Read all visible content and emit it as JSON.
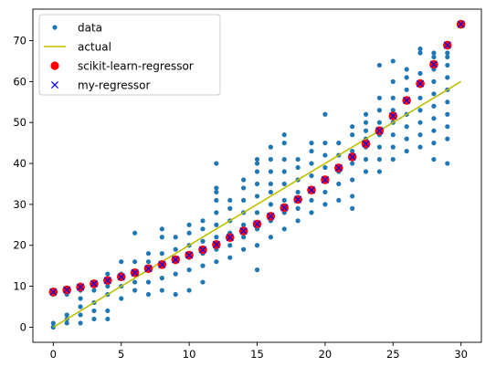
{
  "chart_data": {
    "type": "scatter",
    "title": "",
    "xlabel": "",
    "ylabel": "",
    "xlim": [
      -1.5,
      31.5
    ],
    "ylim": [
      -3.7,
      77.7
    ],
    "grid": false,
    "legend_position": "top-left",
    "x_ticks": [
      0,
      5,
      10,
      15,
      20,
      25,
      30
    ],
    "y_ticks": [
      0,
      10,
      20,
      30,
      40,
      50,
      60,
      70
    ],
    "series": [
      {
        "name": "data",
        "kind": "scatter",
        "color": "#1f77b4",
        "points": [
          [
            0,
            0
          ],
          [
            0,
            0
          ],
          [
            0,
            1
          ],
          [
            0,
            8
          ],
          [
            0,
            9
          ],
          [
            1,
            1
          ],
          [
            1,
            2
          ],
          [
            1,
            3
          ],
          [
            1,
            8
          ],
          [
            1,
            9
          ],
          [
            2,
            1
          ],
          [
            2,
            3
          ],
          [
            2,
            5
          ],
          [
            2,
            7
          ],
          [
            2,
            9
          ],
          [
            3,
            2
          ],
          [
            3,
            4
          ],
          [
            3,
            6
          ],
          [
            3,
            9
          ],
          [
            3,
            11
          ],
          [
            4,
            2
          ],
          [
            4,
            4
          ],
          [
            4,
            8
          ],
          [
            4,
            10
          ],
          [
            4,
            13
          ],
          [
            5,
            7
          ],
          [
            5,
            10
          ],
          [
            5,
            12
          ],
          [
            5,
            13
          ],
          [
            5,
            16
          ],
          [
            6,
            9
          ],
          [
            6,
            11
          ],
          [
            6,
            13
          ],
          [
            6,
            16
          ],
          [
            6,
            23
          ],
          [
            7,
            8
          ],
          [
            7,
            11
          ],
          [
            7,
            14
          ],
          [
            7,
            16
          ],
          [
            7,
            18
          ],
          [
            8,
            9
          ],
          [
            8,
            12
          ],
          [
            8,
            15
          ],
          [
            8,
            18
          ],
          [
            8,
            22
          ],
          [
            8,
            24
          ],
          [
            9,
            8
          ],
          [
            9,
            13
          ],
          [
            9,
            16
          ],
          [
            9,
            19
          ],
          [
            9,
            22
          ],
          [
            10,
            9
          ],
          [
            10,
            14
          ],
          [
            10,
            17
          ],
          [
            10,
            20
          ],
          [
            10,
            23
          ],
          [
            10,
            25
          ],
          [
            11,
            11
          ],
          [
            11,
            15
          ],
          [
            11,
            18
          ],
          [
            11,
            21
          ],
          [
            11,
            24
          ],
          [
            11,
            26
          ],
          [
            12,
            16
          ],
          [
            12,
            19
          ],
          [
            12,
            22
          ],
          [
            12,
            25
          ],
          [
            12,
            28
          ],
          [
            12,
            31
          ],
          [
            12,
            33
          ],
          [
            12,
            34
          ],
          [
            12,
            40
          ],
          [
            13,
            17
          ],
          [
            13,
            20
          ],
          [
            13,
            23
          ],
          [
            13,
            26
          ],
          [
            13,
            29
          ],
          [
            13,
            31
          ],
          [
            14,
            19
          ],
          [
            14,
            22
          ],
          [
            14,
            25
          ],
          [
            14,
            28
          ],
          [
            14,
            31
          ],
          [
            14,
            34
          ],
          [
            14,
            36
          ],
          [
            15,
            14
          ],
          [
            15,
            20
          ],
          [
            15,
            24
          ],
          [
            15,
            28
          ],
          [
            15,
            32
          ],
          [
            15,
            35
          ],
          [
            15,
            38
          ],
          [
            15,
            40
          ],
          [
            15,
            41
          ],
          [
            16,
            22
          ],
          [
            16,
            26
          ],
          [
            16,
            30
          ],
          [
            16,
            33
          ],
          [
            16,
            35
          ],
          [
            16,
            38
          ],
          [
            16,
            41
          ],
          [
            16,
            44
          ],
          [
            17,
            24
          ],
          [
            17,
            28
          ],
          [
            17,
            31
          ],
          [
            17,
            35
          ],
          [
            17,
            38
          ],
          [
            17,
            41
          ],
          [
            17,
            45
          ],
          [
            17,
            47
          ],
          [
            18,
            26
          ],
          [
            18,
            29
          ],
          [
            18,
            33
          ],
          [
            18,
            36
          ],
          [
            18,
            39
          ],
          [
            18,
            41
          ],
          [
            19,
            28
          ],
          [
            19,
            31
          ],
          [
            19,
            34
          ],
          [
            19,
            37
          ],
          [
            19,
            40
          ],
          [
            19,
            43
          ],
          [
            19,
            45
          ],
          [
            20,
            30
          ],
          [
            20,
            33
          ],
          [
            20,
            36
          ],
          [
            20,
            39
          ],
          [
            20,
            42
          ],
          [
            20,
            45
          ],
          [
            20,
            52
          ],
          [
            21,
            31
          ],
          [
            21,
            35
          ],
          [
            21,
            38
          ],
          [
            21,
            42
          ],
          [
            21,
            45
          ],
          [
            22,
            29
          ],
          [
            22,
            32
          ],
          [
            22,
            36
          ],
          [
            22,
            40
          ],
          [
            22,
            43
          ],
          [
            22,
            47
          ],
          [
            22,
            49
          ],
          [
            23,
            38
          ],
          [
            23,
            41
          ],
          [
            23,
            44
          ],
          [
            23,
            46
          ],
          [
            23,
            48
          ],
          [
            23,
            50
          ],
          [
            23,
            52
          ],
          [
            24,
            38
          ],
          [
            24,
            41
          ],
          [
            24,
            44
          ],
          [
            24,
            47
          ],
          [
            24,
            50
          ],
          [
            24,
            53
          ],
          [
            24,
            56
          ],
          [
            24,
            64
          ],
          [
            25,
            41
          ],
          [
            25,
            44
          ],
          [
            25,
            47
          ],
          [
            25,
            50
          ],
          [
            25,
            53
          ],
          [
            25,
            56
          ],
          [
            25,
            60
          ],
          [
            25,
            65
          ],
          [
            26,
            43
          ],
          [
            26,
            46
          ],
          [
            26,
            49
          ],
          [
            26,
            52
          ],
          [
            26,
            55
          ],
          [
            26,
            58
          ],
          [
            26,
            61
          ],
          [
            26,
            63
          ],
          [
            27,
            44
          ],
          [
            27,
            47
          ],
          [
            27,
            50
          ],
          [
            27,
            53
          ],
          [
            27,
            56
          ],
          [
            27,
            59
          ],
          [
            27,
            62
          ],
          [
            27,
            67
          ],
          [
            27,
            68
          ],
          [
            28,
            41
          ],
          [
            28,
            45
          ],
          [
            28,
            48
          ],
          [
            28,
            51
          ],
          [
            28,
            54
          ],
          [
            28,
            57
          ],
          [
            28,
            60
          ],
          [
            28,
            63
          ],
          [
            28,
            66
          ],
          [
            28,
            67
          ],
          [
            29,
            40
          ],
          [
            29,
            46
          ],
          [
            29,
            49
          ],
          [
            29,
            52
          ],
          [
            29,
            55
          ],
          [
            29,
            58
          ],
          [
            29,
            61
          ],
          [
            29,
            64
          ],
          [
            29,
            66
          ],
          [
            29,
            67
          ],
          [
            30,
            74
          ]
        ]
      },
      {
        "name": "actual",
        "kind": "line",
        "color": "#bfbf00",
        "points": [
          [
            0,
            0
          ],
          [
            30,
            60
          ]
        ]
      },
      {
        "name": "scikit-learn-regressor",
        "kind": "circle-marker",
        "color": "#ff0000",
        "points": [
          [
            0,
            8.6
          ],
          [
            1,
            9.1
          ],
          [
            2,
            9.8
          ],
          [
            3,
            10.6
          ],
          [
            4,
            11.4
          ],
          [
            5,
            12.3
          ],
          [
            6,
            13.3
          ],
          [
            7,
            14.3
          ],
          [
            8,
            15.3
          ],
          [
            9,
            16.5
          ],
          [
            10,
            17.6
          ],
          [
            11,
            18.9
          ],
          [
            12,
            20.2
          ],
          [
            13,
            21.9
          ],
          [
            14,
            23.5
          ],
          [
            15,
            25.2
          ],
          [
            16,
            27.1
          ],
          [
            17,
            29.2
          ],
          [
            18,
            31.2
          ],
          [
            19,
            33.5
          ],
          [
            20,
            36.0
          ],
          [
            21,
            38.9
          ],
          [
            22,
            41.6
          ],
          [
            23,
            44.8
          ],
          [
            24,
            48.0
          ],
          [
            25,
            51.6
          ],
          [
            26,
            55.4
          ],
          [
            27,
            59.5
          ],
          [
            28,
            64.2
          ],
          [
            29,
            68.9
          ],
          [
            30,
            74.0
          ]
        ]
      },
      {
        "name": "my-regressor",
        "kind": "x-marker",
        "color": "#0000ff",
        "points": [
          [
            0,
            8.6
          ],
          [
            1,
            9.1
          ],
          [
            2,
            9.8
          ],
          [
            3,
            10.6
          ],
          [
            4,
            11.4
          ],
          [
            5,
            12.3
          ],
          [
            6,
            13.3
          ],
          [
            7,
            14.3
          ],
          [
            8,
            15.3
          ],
          [
            9,
            16.5
          ],
          [
            10,
            17.6
          ],
          [
            11,
            18.9
          ],
          [
            12,
            20.2
          ],
          [
            13,
            21.9
          ],
          [
            14,
            23.5
          ],
          [
            15,
            25.2
          ],
          [
            16,
            27.1
          ],
          [
            17,
            29.2
          ],
          [
            18,
            31.2
          ],
          [
            19,
            33.5
          ],
          [
            20,
            36.0
          ],
          [
            21,
            38.9
          ],
          [
            22,
            41.6
          ],
          [
            23,
            44.8
          ],
          [
            24,
            48.0
          ],
          [
            25,
            51.6
          ],
          [
            26,
            55.4
          ],
          [
            27,
            59.5
          ],
          [
            28,
            64.2
          ],
          [
            29,
            68.9
          ],
          [
            30,
            74.0
          ]
        ]
      }
    ]
  }
}
